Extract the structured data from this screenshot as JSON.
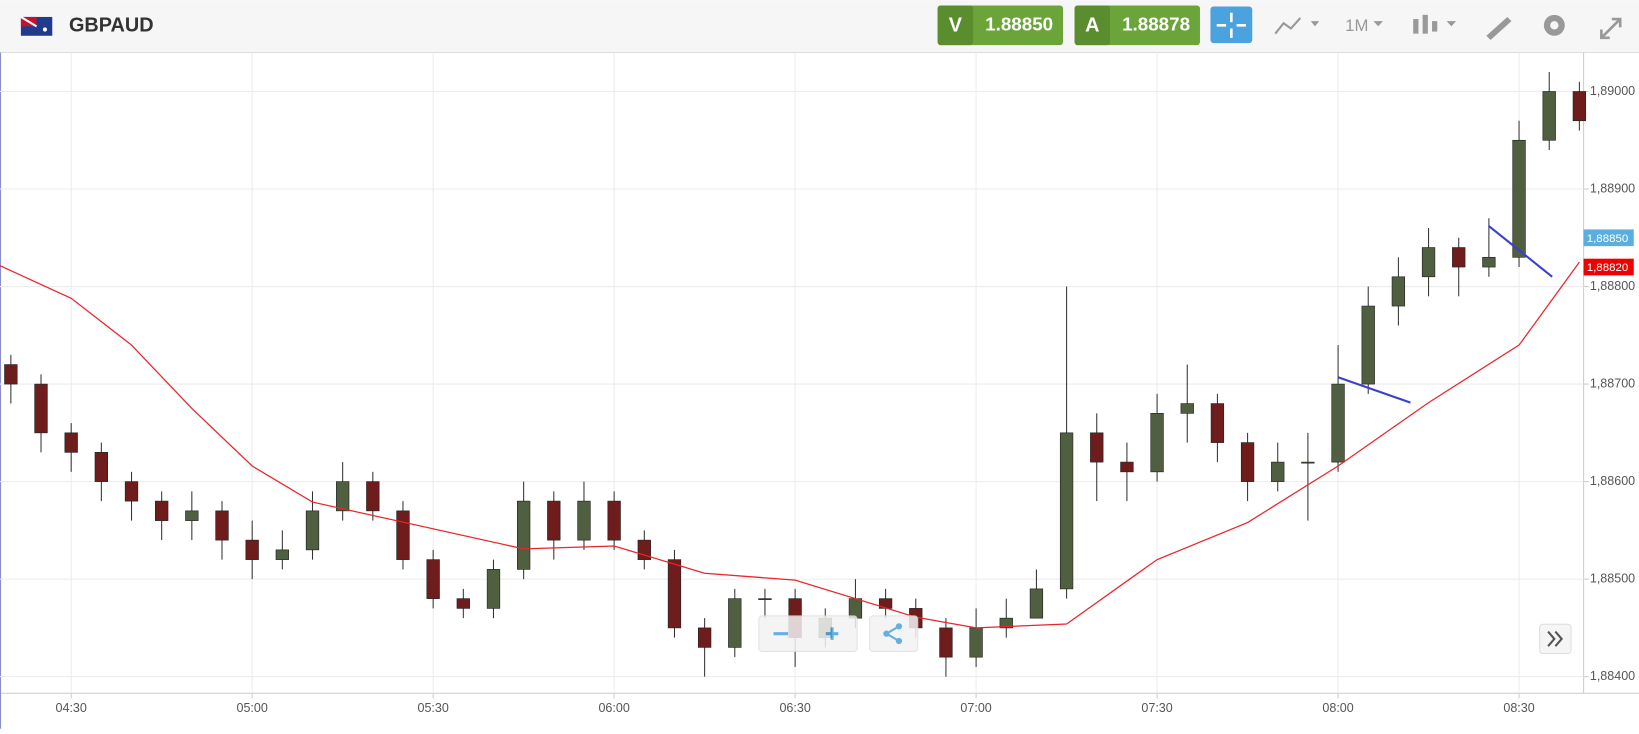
{
  "header": {
    "symbol": "GBPAUD",
    "sell": {
      "label": "V",
      "price": "1.88850"
    },
    "buy": {
      "label": "A",
      "price": "1.88878"
    },
    "timeframe": "1M"
  },
  "chart_data": {
    "type": "candlestick",
    "x": [
      260,
      265,
      270,
      275,
      280,
      285,
      290,
      295,
      300,
      305,
      310,
      315,
      320,
      325,
      330,
      335,
      340,
      345,
      350,
      355,
      360,
      365,
      370,
      375,
      380,
      385,
      390,
      395,
      400,
      405,
      410,
      415,
      420,
      425,
      430,
      435,
      440,
      445,
      450,
      455,
      460,
      465,
      470,
      475,
      480,
      485,
      490,
      495,
      500,
      505,
      510,
      515,
      520
    ],
    "candles": [
      [
        1.8872,
        1.8873,
        1.8868,
        1.887
      ],
      [
        1.887,
        1.8871,
        1.8863,
        1.8865
      ],
      [
        1.8865,
        1.8866,
        1.8861,
        1.8863
      ],
      [
        1.8863,
        1.8864,
        1.8858,
        1.886
      ],
      [
        1.886,
        1.8861,
        1.8856,
        1.8858
      ],
      [
        1.8858,
        1.8859,
        1.8854,
        1.8856
      ],
      [
        1.8856,
        1.8859,
        1.8854,
        1.8857
      ],
      [
        1.8857,
        1.8858,
        1.8852,
        1.8854
      ],
      [
        1.8854,
        1.8856,
        1.885,
        1.8852
      ],
      [
        1.8852,
        1.8855,
        1.8851,
        1.8853
      ],
      [
        1.8853,
        1.8859,
        1.8852,
        1.8857
      ],
      [
        1.8857,
        1.8862,
        1.8856,
        1.886
      ],
      [
        1.886,
        1.8861,
        1.8856,
        1.8857
      ],
      [
        1.8857,
        1.8858,
        1.8851,
        1.8852
      ],
      [
        1.8852,
        1.8853,
        1.8847,
        1.8848
      ],
      [
        1.8848,
        1.8849,
        1.8846,
        1.8847
      ],
      [
        1.8847,
        1.8852,
        1.8846,
        1.8851
      ],
      [
        1.8851,
        1.886,
        1.885,
        1.8858
      ],
      [
        1.8858,
        1.8859,
        1.8852,
        1.8854
      ],
      [
        1.8854,
        1.886,
        1.8853,
        1.8858
      ],
      [
        1.8858,
        1.8859,
        1.8853,
        1.8854
      ],
      [
        1.8854,
        1.8855,
        1.8851,
        1.8852
      ],
      [
        1.8852,
        1.8853,
        1.8844,
        1.8845
      ],
      [
        1.8845,
        1.8846,
        1.884,
        1.8843
      ],
      [
        1.8843,
        1.8849,
        1.8842,
        1.8848
      ],
      [
        1.8848,
        1.8849,
        1.8846,
        1.8848
      ],
      [
        1.8848,
        1.8849,
        1.8841,
        1.8844
      ],
      [
        1.8844,
        1.8847,
        1.8843,
        1.8846
      ],
      [
        1.8846,
        1.885,
        1.8845,
        1.8848
      ],
      [
        1.8848,
        1.8849,
        1.8846,
        1.8847
      ],
      [
        1.8847,
        1.8848,
        1.8844,
        1.8845
      ],
      [
        1.8845,
        1.8846,
        1.884,
        1.8842
      ],
      [
        1.8842,
        1.8847,
        1.8841,
        1.8845
      ],
      [
        1.8845,
        1.8848,
        1.8844,
        1.8846
      ],
      [
        1.8846,
        1.8851,
        1.8846,
        1.8849
      ],
      [
        1.8849,
        1.888,
        1.8848,
        1.8865
      ],
      [
        1.8865,
        1.8867,
        1.8858,
        1.8862
      ],
      [
        1.8862,
        1.8864,
        1.8858,
        1.8861
      ],
      [
        1.8861,
        1.8869,
        1.886,
        1.8867
      ],
      [
        1.8867,
        1.8872,
        1.8864,
        1.8868
      ],
      [
        1.8868,
        1.8869,
        1.8862,
        1.8864
      ],
      [
        1.8864,
        1.8865,
        1.8858,
        1.886
      ],
      [
        1.886,
        1.8864,
        1.8859,
        1.8862
      ],
      [
        1.8862,
        1.8865,
        1.8856,
        1.8862
      ],
      [
        1.8862,
        1.8874,
        1.8861,
        1.887
      ],
      [
        1.887,
        1.888,
        1.8869,
        1.8878
      ],
      [
        1.8878,
        1.8883,
        1.8876,
        1.8881
      ],
      [
        1.8881,
        1.8886,
        1.8879,
        1.8884
      ],
      [
        1.8884,
        1.8885,
        1.8879,
        1.8882
      ],
      [
        1.8882,
        1.8887,
        1.8881,
        1.8883
      ],
      [
        1.8883,
        1.8897,
        1.8882,
        1.8895
      ],
      [
        1.8895,
        1.8902,
        1.8894,
        1.89
      ],
      [
        1.89,
        1.8901,
        1.8896,
        1.8897
      ]
    ],
    "up_color": "#4f5f3f",
    "down_color": "#6e1c1c",
    "moving_average": {
      "color": "#e8262b",
      "x": [
        258,
        270,
        280,
        290,
        300,
        310,
        345,
        360,
        375,
        390,
        410,
        420,
        435,
        450,
        465,
        480,
        495,
        510,
        520
      ],
      "values": [
        1.88822,
        1.88788,
        1.8874,
        1.88675,
        1.88616,
        1.88579,
        1.88531,
        1.88534,
        1.88506,
        1.88499,
        1.88461,
        1.8845,
        1.88454,
        1.8852,
        1.88558,
        1.88616,
        1.88681,
        1.8874,
        1.88825
      ]
    },
    "drawings": [
      {
        "color": "#3a3fcc",
        "x": [
          480,
          492
        ],
        "values": [
          1.88707,
          1.88681
        ]
      },
      {
        "color": "#3a3fcc",
        "x": [
          505,
          515.5
        ],
        "values": [
          1.88862,
          1.8881
        ]
      }
    ],
    "price_labels": [
      {
        "value": 1.8885,
        "label": "1,88850",
        "color": "#5aaee0"
      },
      {
        "value": 1.8882,
        "label": "1,88820",
        "color": "#f00000"
      }
    ],
    "xlim": [
      258.2,
      520.7
    ],
    "xticks": [
      {
        "value": 270,
        "label": "04:30"
      },
      {
        "value": 300,
        "label": "05:00"
      },
      {
        "value": 330,
        "label": "05:30"
      },
      {
        "value": 360,
        "label": "06:00"
      },
      {
        "value": 390,
        "label": "06:30"
      },
      {
        "value": 420,
        "label": "07:00"
      },
      {
        "value": 450,
        "label": "07:30"
      },
      {
        "value": 480,
        "label": "08:00"
      },
      {
        "value": 510,
        "label": "08:30"
      }
    ],
    "ylim": [
      1.88383,
      1.8904
    ],
    "yticks": [
      {
        "value": 1.884,
        "label": "1,88400"
      },
      {
        "value": 1.885,
        "label": "1,88500"
      },
      {
        "value": 1.886,
        "label": "1,88600"
      },
      {
        "value": 1.887,
        "label": "1,88700"
      },
      {
        "value": 1.888,
        "label": "1,88800"
      },
      {
        "value": 1.889,
        "label": "1,88900"
      },
      {
        "value": 1.89,
        "label": "1,89000"
      }
    ],
    "grid": true
  }
}
